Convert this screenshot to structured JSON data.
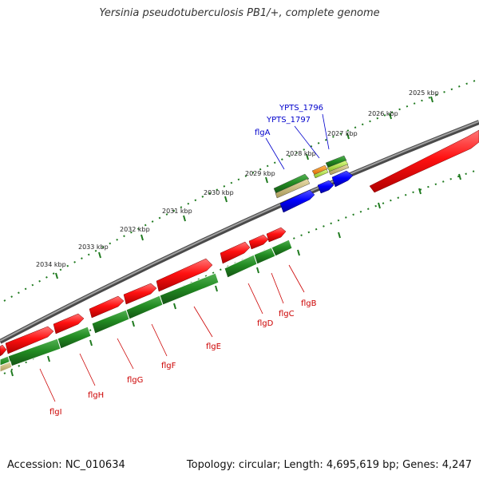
{
  "title": "Yersinia pseudotuberculosis PB1/+, complete genome",
  "footer": {
    "accession": "Accession: NC_010634",
    "summary": "Topology: circular; Length: 4,695,619 bp; Genes: 4,247"
  },
  "colors": {
    "backbone": "#808080",
    "forward_strand": "#ff0000",
    "reverse_strand": "#228b22",
    "other_feature": "#0000ff",
    "tick_mark": "#1f7a1f",
    "label_forward": "#0000cc",
    "label_reverse": "#cc0000"
  },
  "ticks": [
    "2025 kbp",
    "2026 kbp",
    "2027 kbp",
    "2028 kbp",
    "2029 kbp",
    "2030 kbp",
    "2031 kbp",
    "2032 kbp",
    "2033 kbp",
    "2034 kbp"
  ],
  "gene_labels_top": [
    "YPTS_1796",
    "YPTS_1797",
    "flgA"
  ],
  "gene_labels_bottom": [
    "flgB",
    "flgC",
    "flgD",
    "flgE",
    "flgF",
    "flgG",
    "flgH",
    "flgI"
  ]
}
